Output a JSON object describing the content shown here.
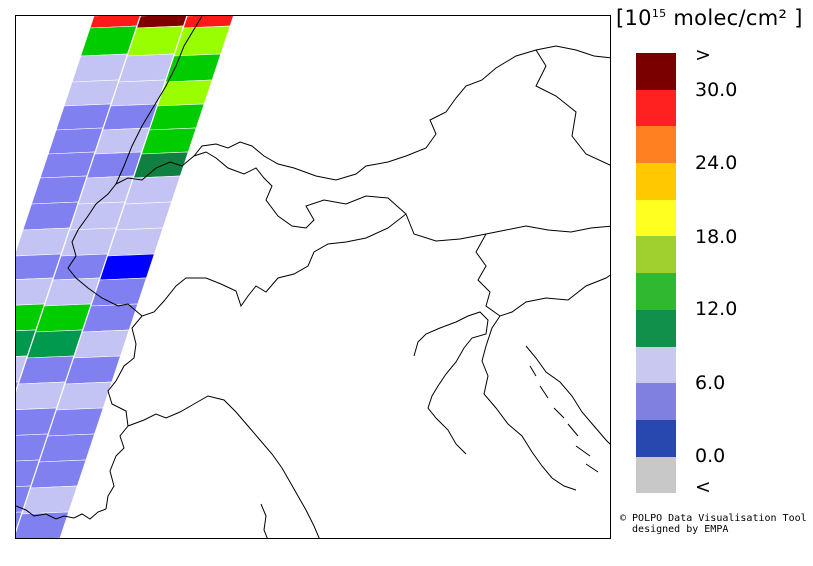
{
  "legend": {
    "unit_prefix": "10",
    "unit_exponent": "15",
    "unit_suffix": " molec/cm²",
    "open_bracket": "[",
    "close_bracket": "]",
    "colors": [
      "#7a0000",
      "#ff2020",
      "#ff8020",
      "#ffc800",
      "#ffff20",
      "#a0d030",
      "#30b830",
      "#10904a",
      "#c8c8f0",
      "#8080e0",
      "#2848b0",
      "#c8c8c8"
    ],
    "tick_labels": [
      ">",
      "30.0",
      "24.0",
      "18.0",
      "12.0",
      "6.0",
      "0.0",
      "<"
    ]
  },
  "credit": {
    "line1": "© POLPO Data Visualisation Tool",
    "line2": "  designed by EMPA"
  },
  "swath_colors": {
    "darkred": "#800000",
    "red": "#ff1a1a",
    "lime": "#99ff00",
    "green": "#00cc00",
    "darkgreen": "#00994d",
    "forest": "#108040",
    "lavender": "#c4c4f4",
    "periwinkle": "#8080f0",
    "blue": "#0000ff"
  }
}
